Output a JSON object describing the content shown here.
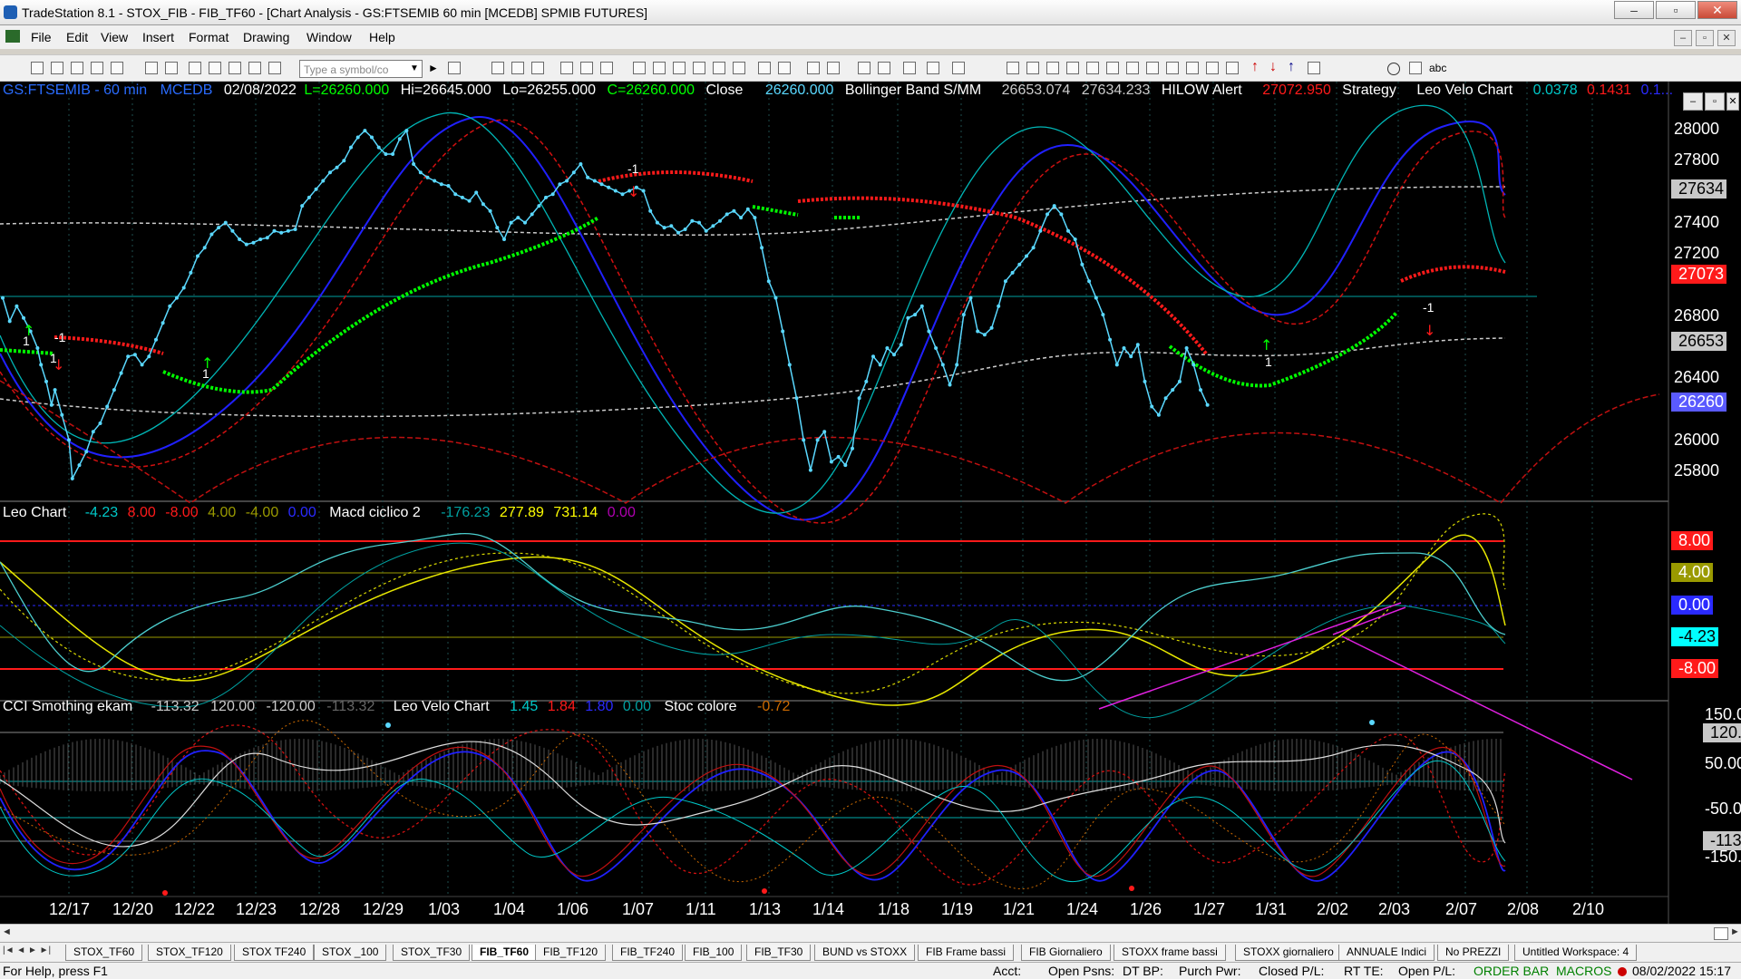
{
  "window": {
    "title": "TradeStation 8.1 - STOX_FIB - FIB_TF60 - [Chart Analysis - GS:FTSEMIB  60 min  [MCEDB] SPMIB FUTURES]"
  },
  "menu": [
    "File",
    "Edit",
    "View",
    "Insert",
    "Format",
    "Drawing",
    "Window",
    "Help"
  ],
  "toolbar": {
    "symbol_placeholder": "Type a symbol/co",
    "text_tool": "abc"
  },
  "price_pane": {
    "symbol": "GS:FTSEMIB - 60 min",
    "feed": "MCEDB",
    "date": "02/08/2022",
    "last": "L=26260.000",
    "high": "Hi=26645.000",
    "low": "Lo=26255.000",
    "close_c": "C=26260.000",
    "close_label": "Close",
    "close_val": "26260.000",
    "bb_label": "Bollinger Band S/MM",
    "bb_v1": "26653.074",
    "bb_v2": "27634.233",
    "hilow_label": "HILOW Alert",
    "hilow_v": "27072.950",
    "strategy_label": "Strategy",
    "velo_label": "Leo Velo Chart",
    "velo_v1": "0.0378",
    "velo_v2": "0.1431",
    "velo_v3": "0.1...",
    "axis_ticks": [
      "28000",
      "27800",
      "27400",
      "27200",
      "26800",
      "26400",
      "26000",
      "25800"
    ],
    "tag_bb_upper": "27634",
    "tag_hilow": "27073",
    "tag_bb_lower": "26653",
    "tag_close": "26260",
    "signals": [
      "1",
      "1",
      "1",
      "-1",
      "-1",
      "1",
      "-1"
    ]
  },
  "osc_pane": {
    "leo_label": "Leo Chart",
    "v1": "-4.23",
    "v2": "8.00",
    "v3": "-8.00",
    "v4": "4.00",
    "v5": "-4.00",
    "v6": "0.00",
    "macd_label": "Macd ciclico 2",
    "m1": "-176.23",
    "m2": "277.89",
    "m3": "731.14",
    "m4": "0.00",
    "tags": [
      "8.00",
      "4.00",
      "0.00",
      "-4.23",
      "-8.00"
    ]
  },
  "cci_pane": {
    "cci_label": "CCI Smothing ekam",
    "c1": "-113.32",
    "c2": "120.00",
    "c3": "-120.00",
    "c4": "-113.32",
    "velo_label": "Leo Velo Chart",
    "l1": "1.45",
    "l2": "1.84",
    "l3": "1.80",
    "l4": "0.00",
    "stoc_label": "Stoc colore",
    "s1": "-0.72",
    "axis_ticks": [
      "150.00",
      "50.00",
      "-50.00",
      "-150.00"
    ],
    "tag_120": "120.00",
    "tag_last": "-113.32"
  },
  "x_axis": [
    "12/17",
    "12/20",
    "12/22",
    "12/23",
    "12/28",
    "12/29",
    "1/03",
    "1/04",
    "1/06",
    "1/07",
    "1/11",
    "1/13",
    "1/14",
    "1/18",
    "1/19",
    "1/21",
    "1/24",
    "1/26",
    "1/27",
    "1/31",
    "2/02",
    "2/03",
    "2/07",
    "2/08",
    "2/10"
  ],
  "tabs": [
    "STOX_TF60",
    "STOX_TF120",
    "STOX TF240",
    "STOX _100",
    "STOX_TF30",
    "FIB_TF60",
    "FIB_TF120",
    "FIB_TF240",
    "FIB_100",
    "FIB_TF30",
    "BUND vs STOXX",
    "FIB Frame bassi",
    "FIB Giornaliero",
    "STOXX frame bassi",
    "STOXX giornaliero",
    "ANNUALE Indici",
    "No PREZZI",
    "Untitled Workspace: 4"
  ],
  "active_tab": "FIB_TF60",
  "status": {
    "help": "For Help, press F1",
    "acct": "Acct:",
    "open_psns": "Open Psns:",
    "dt_bp": "DT BP:",
    "purch_pwr": "Purch Pwr:",
    "closed_pl": "Closed P/L:",
    "rt_te": "RT TE:",
    "open_pl": "Open P/L:",
    "order_bar": "ORDER BAR",
    "macros": "MACROS",
    "datetime": "08/02/2022 15:17"
  },
  "colors": {
    "green": "#00ff00",
    "red": "#ff0000",
    "cyan": "#00e5ff",
    "yellow": "#ffff00",
    "blue": "#0000ff"
  },
  "chart_data": {
    "type": "line",
    "price_ylim": [
      25700,
      28150
    ],
    "price_path": [
      [
        0,
        26900
      ],
      [
        4,
        26760
      ],
      [
        8,
        26850
      ],
      [
        12,
        26780
      ],
      [
        16,
        26700
      ],
      [
        20,
        26600
      ],
      [
        22,
        26500
      ],
      [
        25,
        26400
      ],
      [
        28,
        26260
      ],
      [
        30,
        26350
      ],
      [
        34,
        26200
      ],
      [
        38,
        26050
      ],
      [
        40,
        25820
      ],
      [
        44,
        25900
      ],
      [
        48,
        25980
      ],
      [
        52,
        26100
      ],
      [
        56,
        26150
      ],
      [
        60,
        26250
      ],
      [
        64,
        26350
      ],
      [
        68,
        26450
      ],
      [
        72,
        26550
      ],
      [
        76,
        26560
      ],
      [
        80,
        26500
      ],
      [
        84,
        26550
      ],
      [
        88,
        26650
      ],
      [
        92,
        26750
      ],
      [
        96,
        26850
      ],
      [
        100,
        26900
      ],
      [
        104,
        26960
      ],
      [
        108,
        27050
      ],
      [
        112,
        27150
      ],
      [
        116,
        27200
      ],
      [
        120,
        27280
      ],
      [
        124,
        27320
      ],
      [
        128,
        27350
      ],
      [
        132,
        27300
      ],
      [
        136,
        27250
      ],
      [
        140,
        27220
      ],
      [
        144,
        27230
      ],
      [
        148,
        27250
      ],
      [
        152,
        27260
      ],
      [
        156,
        27300
      ],
      [
        160,
        27290
      ],
      [
        164,
        27300
      ],
      [
        168,
        27310
      ],
      [
        172,
        27450
      ],
      [
        176,
        27500
      ],
      [
        180,
        27550
      ],
      [
        184,
        27600
      ],
      [
        188,
        27650
      ],
      [
        192,
        27680
      ],
      [
        196,
        27720
      ],
      [
        200,
        27800
      ],
      [
        204,
        27860
      ],
      [
        208,
        27900
      ],
      [
        212,
        27860
      ],
      [
        216,
        27800
      ],
      [
        220,
        27760
      ],
      [
        224,
        27760
      ],
      [
        228,
        27850
      ],
      [
        232,
        27900
      ],
      [
        236,
        27700
      ],
      [
        240,
        27650
      ],
      [
        244,
        27620
      ],
      [
        248,
        27600
      ],
      [
        252,
        27580
      ],
      [
        256,
        27570
      ],
      [
        260,
        27520
      ],
      [
        264,
        27500
      ],
      [
        268,
        27480
      ],
      [
        272,
        27530
      ],
      [
        276,
        27460
      ],
      [
        280,
        27420
      ],
      [
        284,
        27320
      ],
      [
        288,
        27250
      ],
      [
        292,
        27350
      ],
      [
        296,
        27380
      ],
      [
        300,
        27350
      ],
      [
        304,
        27400
      ],
      [
        308,
        27450
      ],
      [
        312,
        27500
      ],
      [
        316,
        27520
      ],
      [
        320,
        27580
      ],
      [
        324,
        27600
      ],
      [
        328,
        27650
      ],
      [
        332,
        27700
      ],
      [
        336,
        27620
      ],
      [
        340,
        27600
      ],
      [
        344,
        27580
      ],
      [
        348,
        27560
      ],
      [
        352,
        27540
      ],
      [
        356,
        27520
      ],
      [
        360,
        27540
      ],
      [
        364,
        27560
      ],
      [
        368,
        27540
      ],
      [
        372,
        27420
      ],
      [
        376,
        27350
      ],
      [
        380,
        27320
      ],
      [
        384,
        27330
      ],
      [
        388,
        27290
      ],
      [
        392,
        27310
      ],
      [
        396,
        27360
      ],
      [
        400,
        27350
      ],
      [
        404,
        27300
      ],
      [
        408,
        27330
      ],
      [
        412,
        27360
      ],
      [
        416,
        27400
      ],
      [
        420,
        27420
      ],
      [
        424,
        27380
      ],
      [
        428,
        27430
      ],
      [
        432,
        27380
      ],
      [
        436,
        27200
      ],
      [
        440,
        27000
      ],
      [
        444,
        26900
      ],
      [
        448,
        26700
      ],
      [
        452,
        26500
      ],
      [
        456,
        26300
      ],
      [
        460,
        26050
      ],
      [
        464,
        25870
      ],
      [
        468,
        26050
      ],
      [
        472,
        26100
      ],
      [
        476,
        25920
      ],
      [
        480,
        25950
      ],
      [
        484,
        25900
      ],
      [
        488,
        26000
      ],
      [
        492,
        26300
      ],
      [
        496,
        26400
      ],
      [
        500,
        26550
      ],
      [
        504,
        26500
      ],
      [
        508,
        26600
      ],
      [
        512,
        26560
      ],
      [
        516,
        26620
      ],
      [
        520,
        26780
      ],
      [
        524,
        26800
      ],
      [
        528,
        26850
      ],
      [
        532,
        26700
      ],
      [
        536,
        26600
      ],
      [
        540,
        26500
      ],
      [
        544,
        26380
      ],
      [
        548,
        26500
      ],
      [
        552,
        26800
      ],
      [
        556,
        26900
      ],
      [
        560,
        26700
      ],
      [
        564,
        26680
      ],
      [
        568,
        26720
      ],
      [
        572,
        26850
      ],
      [
        576,
        27000
      ],
      [
        580,
        27050
      ],
      [
        584,
        27100
      ],
      [
        588,
        27150
      ],
      [
        592,
        27200
      ],
      [
        596,
        27300
      ],
      [
        600,
        27400
      ],
      [
        604,
        27450
      ],
      [
        608,
        27400
      ],
      [
        612,
        27300
      ],
      [
        616,
        27250
      ],
      [
        620,
        27100
      ],
      [
        624,
        27000
      ],
      [
        628,
        26900
      ],
      [
        632,
        26800
      ],
      [
        636,
        26650
      ],
      [
        640,
        26500
      ],
      [
        644,
        26600
      ],
      [
        648,
        26550
      ],
      [
        652,
        26620
      ],
      [
        656,
        26400
      ],
      [
        660,
        26250
      ],
      [
        664,
        26200
      ],
      [
        668,
        26300
      ],
      [
        672,
        26350
      ],
      [
        676,
        26400
      ],
      [
        680,
        26600
      ],
      [
        684,
        26500
      ],
      [
        688,
        26350
      ],
      [
        692,
        26260
      ]
    ]
  }
}
